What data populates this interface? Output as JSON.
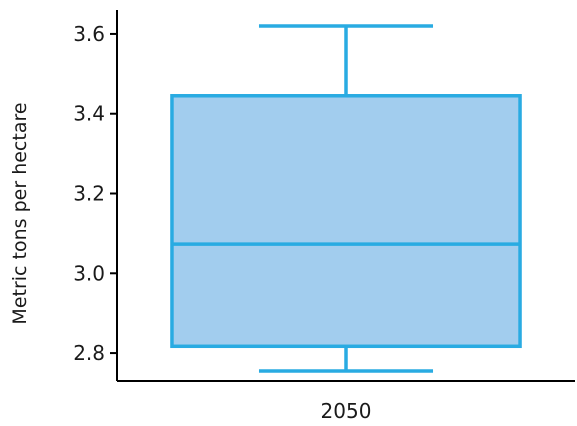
{
  "chart_data": {
    "type": "box",
    "title": "",
    "xlabel": "",
    "ylabel": "Metric tons per hectare",
    "categories": [
      "2050"
    ],
    "boxes": [
      {
        "category": "2050",
        "min": 2.755,
        "q1": 2.817,
        "median": 3.073,
        "q3": 3.445,
        "max": 3.62
      }
    ],
    "ylim": [
      2.73,
      3.66
    ],
    "yticks": [
      2.8,
      3.0,
      3.2,
      3.4,
      3.6
    ],
    "ytick_labels": [
      "2.8",
      "3.0",
      "3.2",
      "3.4",
      "3.6"
    ],
    "grid": false,
    "colors": {
      "box_fill": "#a2cdee",
      "box_stroke": "#29abe2",
      "axis": "#000000"
    }
  }
}
